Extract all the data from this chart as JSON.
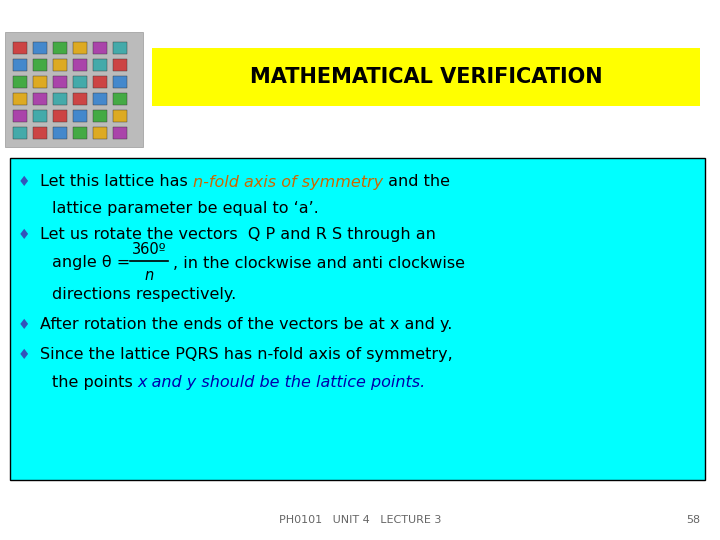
{
  "title": "MATHEMATICAL VERIFICATION",
  "title_bg": "#FFFF00",
  "title_color": "#000000",
  "title_fontsize": 15,
  "slide_bg": "#FFFFFF",
  "content_bg": "#00FFFF",
  "content_border": "#000000",
  "footer_text": "PH0101   UNIT 4   LECTURE 3",
  "footer_page": "58",
  "footer_color": "#666666",
  "footer_fontsize": 8,
  "text_color": "#000000",
  "highlight_color": "#CC6600",
  "highlight2_color": "#0000AA",
  "font_family": "DejaVu Sans",
  "text_fontsize": 11.5,
  "bullet_color": "#3355BB"
}
